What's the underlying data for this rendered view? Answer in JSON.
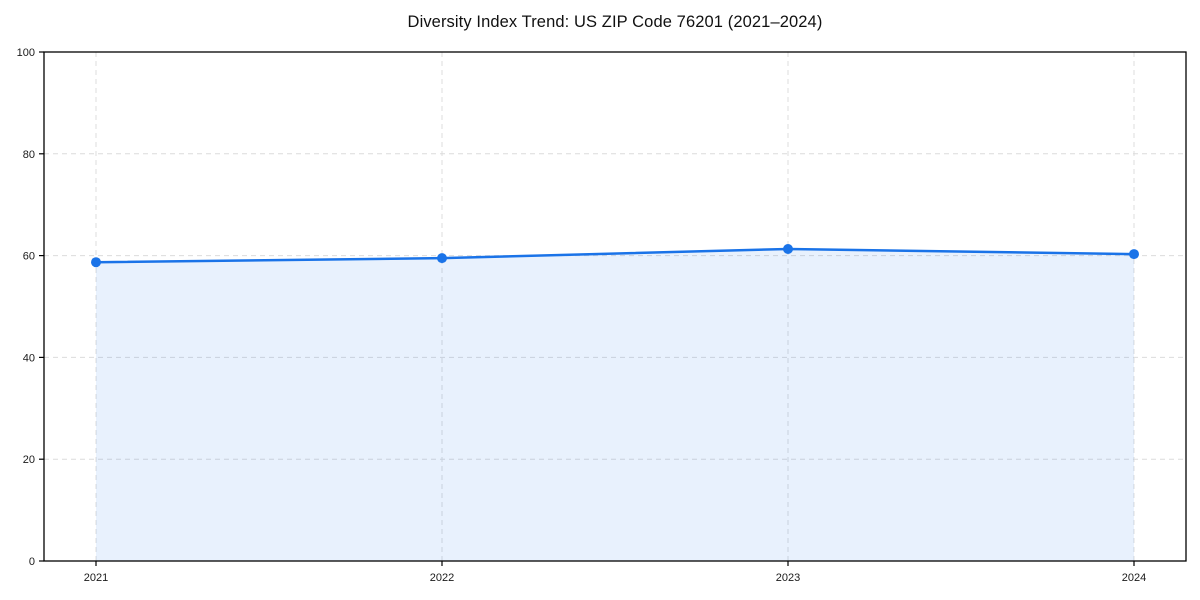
{
  "chart_data": {
    "type": "area",
    "title": "Diversity Index Trend: US ZIP Code 76201 (2021–2024)",
    "x": [
      2021,
      2022,
      2023,
      2024
    ],
    "xticklabels": [
      "2021",
      "2022",
      "2023",
      "2024"
    ],
    "series": [
      {
        "name": "Diversity Index",
        "values": [
          58.7,
          59.5,
          61.3,
          60.3
        ]
      }
    ],
    "xlabel": "",
    "ylabel": "",
    "ylim": [
      0,
      100
    ],
    "yticks": [
      0,
      20,
      40,
      60,
      80,
      100
    ],
    "grid": true,
    "grid_style": "dashed",
    "legend_position": "none",
    "colors": {
      "line": "#1a73e8",
      "marker": "#1a73e8",
      "area_fill": "rgba(26,115,232,0.10)",
      "grid": "#dcdcdc",
      "axis": "#000000",
      "tick_label": "#1a1a1a",
      "background": "#ffffff"
    }
  }
}
